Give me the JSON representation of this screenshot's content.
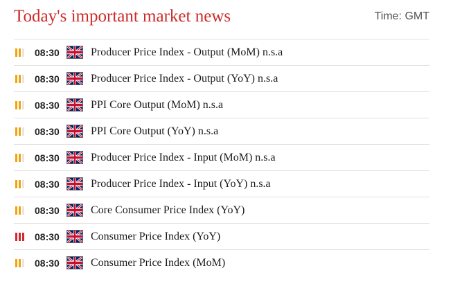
{
  "header": {
    "title": "Today's important market news",
    "timezone": "Time: GMT"
  },
  "events": [
    {
      "time": "08:30",
      "country_icon": "uk-flag-icon",
      "impact": "medium",
      "impact_level": 2,
      "title": "Producer Price Index - Output (MoM) n.s.a"
    },
    {
      "time": "08:30",
      "country_icon": "uk-flag-icon",
      "impact": "medium",
      "impact_level": 2,
      "title": "Producer Price Index - Output (YoY) n.s.a"
    },
    {
      "time": "08:30",
      "country_icon": "uk-flag-icon",
      "impact": "medium",
      "impact_level": 2,
      "title": "PPI Core Output (MoM) n.s.a"
    },
    {
      "time": "08:30",
      "country_icon": "uk-flag-icon",
      "impact": "medium",
      "impact_level": 2,
      "title": "PPI Core Output (YoY) n.s.a"
    },
    {
      "time": "08:30",
      "country_icon": "uk-flag-icon",
      "impact": "medium",
      "impact_level": 2,
      "title": "Producer Price Index - Input (MoM) n.s.a"
    },
    {
      "time": "08:30",
      "country_icon": "uk-flag-icon",
      "impact": "medium",
      "impact_level": 2,
      "title": "Producer Price Index - Input (YoY) n.s.a"
    },
    {
      "time": "08:30",
      "country_icon": "uk-flag-icon",
      "impact": "medium",
      "impact_level": 2,
      "title": "Core Consumer Price Index (YoY)"
    },
    {
      "time": "08:30",
      "country_icon": "uk-flag-icon",
      "impact": "high",
      "impact_level": 3,
      "title": "Consumer Price Index (YoY)"
    },
    {
      "time": "08:30",
      "country_icon": "uk-flag-icon",
      "impact": "medium",
      "impact_level": 2,
      "title": "Consumer Price Index (MoM)"
    }
  ],
  "colors": {
    "title": "#cc2a2a",
    "impact_medium": "#f0a30a",
    "impact_high": "#d7262e",
    "impact_off": "#e6e6e6",
    "divider": "#e0e0e0"
  }
}
